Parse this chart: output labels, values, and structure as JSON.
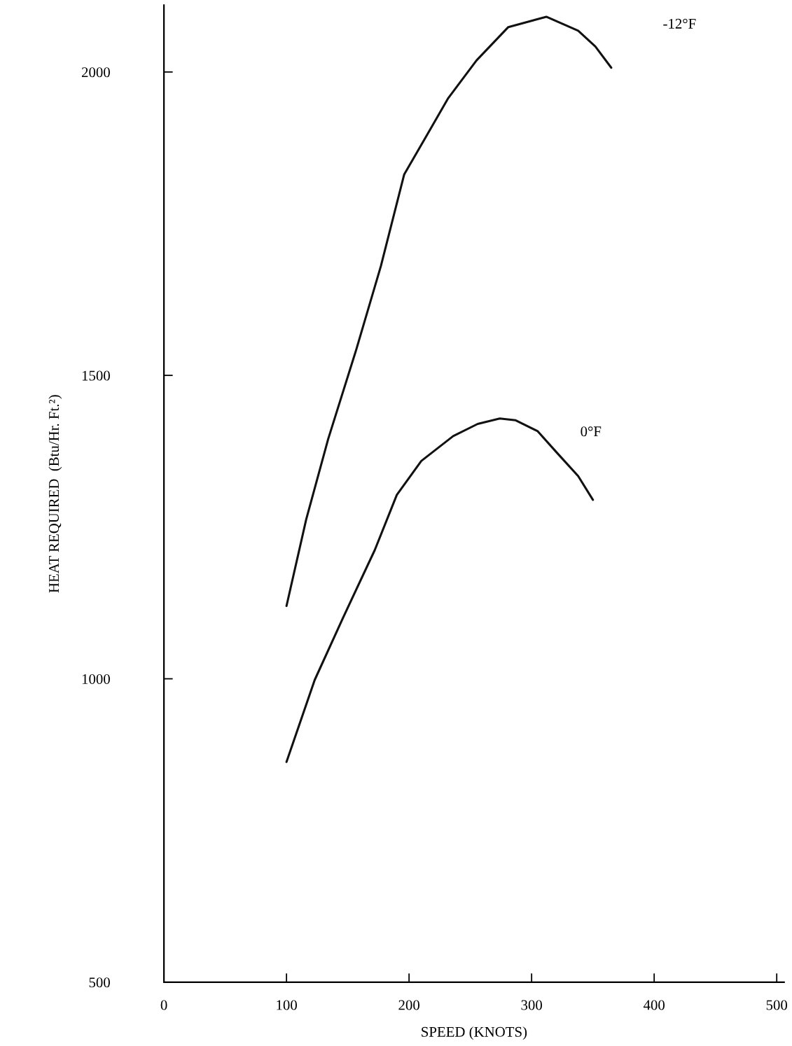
{
  "chart_data": {
    "type": "line",
    "xlabel": "SPEED (KNOTS)",
    "ylabel": "HEAT REQUIRED  (Btu/Hr. Ft.²)",
    "xlim": [
      0,
      506
    ],
    "ylim": [
      500,
      2110
    ],
    "xticks": [
      0,
      100,
      200,
      300,
      400,
      500
    ],
    "yticks": [
      500,
      1000,
      1500,
      2000
    ],
    "grid": false,
    "legend": false,
    "marker": "none",
    "line_style": "solid",
    "series": [
      {
        "name": "-12°F",
        "color": "#111111",
        "x": [
          100,
          116,
          134,
          157,
          177,
          196,
          214,
          232,
          255,
          281,
          312,
          338,
          352,
          365
        ],
        "values": [
          1120,
          1262,
          1395,
          1543,
          1680,
          1831,
          1894,
          1957,
          2019,
          2074,
          2091,
          2068,
          2042,
          2007
        ]
      },
      {
        "name": "0°F",
        "color": "#111111",
        "x": [
          100,
          123,
          146,
          172,
          190,
          210,
          236,
          256,
          274,
          287,
          305,
          320,
          338,
          350
        ],
        "values": [
          863,
          998,
          1100,
          1212,
          1303,
          1359,
          1400,
          1420,
          1429,
          1426,
          1408,
          1374,
          1334,
          1295
        ]
      }
    ]
  }
}
